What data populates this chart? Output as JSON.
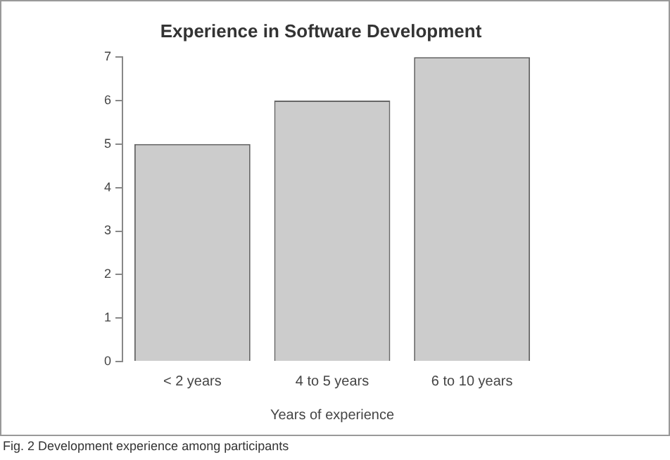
{
  "chart_data": {
    "type": "bar",
    "title": "Experience in Software Development",
    "xlabel": "Years of experience",
    "categories": [
      "< 2 years",
      "4 to 5 years",
      "6 to 10 years"
    ],
    "values": [
      5,
      6,
      7
    ],
    "color": "#cccccc",
    "ylim": [
      0,
      7
    ],
    "yticks": [
      0,
      1,
      2,
      3,
      4,
      5,
      6,
      7
    ],
    "grid": false,
    "legend": false,
    "annotations": [
      "Fig. 2 Development experience among participants"
    ]
  }
}
